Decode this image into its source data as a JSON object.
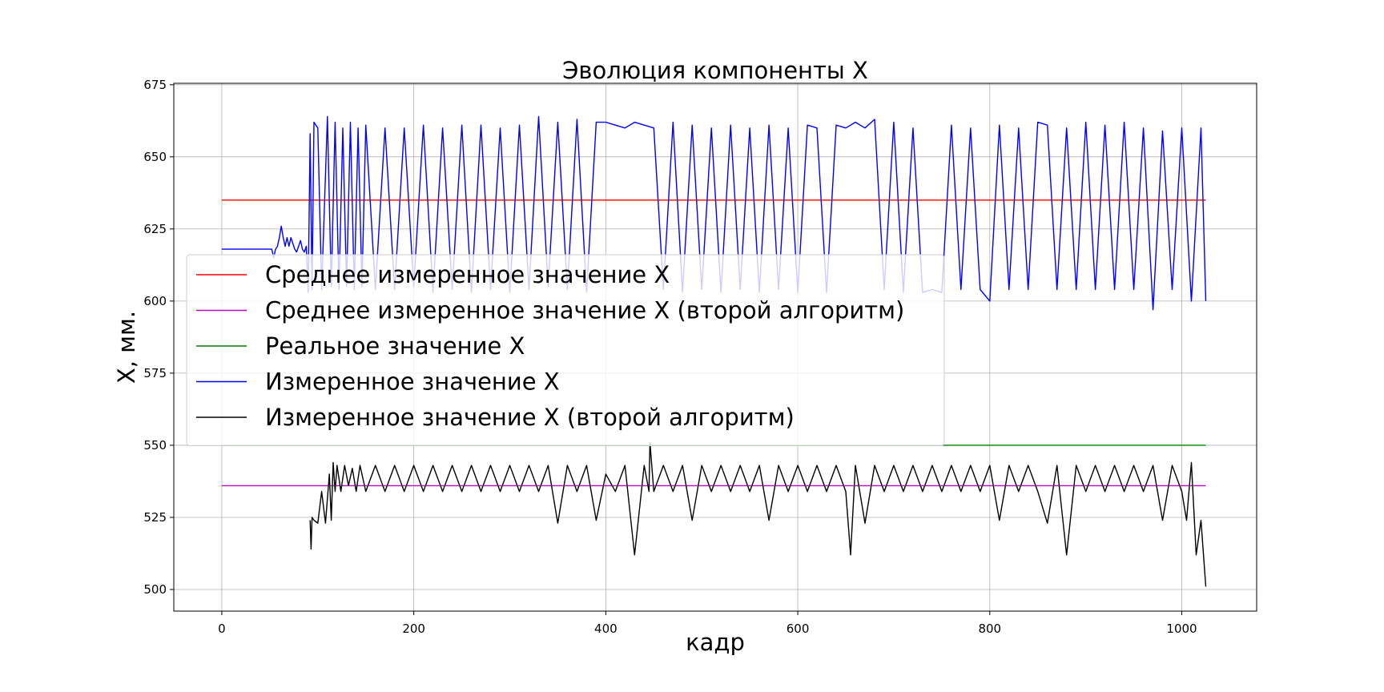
{
  "chart_data": {
    "type": "line",
    "title": "Эволюция компоненты X",
    "xlabel": "кадр",
    "ylabel": "X, мм.",
    "xlim": [
      -50,
      1078
    ],
    "ylim": [
      492.5,
      675.5
    ],
    "xticks": [
      0,
      200,
      400,
      600,
      800,
      1000
    ],
    "yticks": [
      500,
      525,
      550,
      575,
      600,
      625,
      650,
      675
    ],
    "grid": true,
    "legend_position": "center-left",
    "series": [
      {
        "name": "Среднее измеренное значение X",
        "color": "#ff0000",
        "x": [
          0,
          1025
        ],
        "y": [
          635,
          635
        ]
      },
      {
        "name": "Среднее измеренное значение X (второй алгоритм)",
        "color": "#bf00bf",
        "x": [
          0,
          1025
        ],
        "y": [
          536,
          536
        ]
      },
      {
        "name": "Реальное значение X",
        "color": "#008000",
        "x": [
          0,
          1025
        ],
        "y": [
          550,
          550
        ]
      },
      {
        "name": "Измеренное значение X",
        "color": "#0000ff",
        "x": [
          0,
          52,
          54,
          56,
          58,
          60,
          62,
          64,
          66,
          68,
          70,
          72,
          74,
          76,
          78,
          80,
          82,
          84,
          86,
          88,
          90,
          92,
          94,
          96,
          100,
          104,
          110,
          114,
          118,
          122,
          126,
          130,
          134,
          138,
          142,
          146,
          150,
          160,
          170,
          180,
          190,
          200,
          210,
          220,
          230,
          240,
          250,
          260,
          270,
          280,
          290,
          300,
          310,
          320,
          330,
          340,
          350,
          360,
          370,
          380,
          390,
          400,
          410,
          420,
          430,
          440,
          450,
          460,
          470,
          480,
          490,
          500,
          510,
          520,
          530,
          540,
          550,
          560,
          570,
          580,
          590,
          600,
          610,
          620,
          630,
          640,
          650,
          660,
          670,
          680,
          690,
          700,
          710,
          720,
          730,
          740,
          750,
          760,
          770,
          780,
          790,
          800,
          810,
          820,
          830,
          840,
          850,
          860,
          870,
          880,
          890,
          900,
          910,
          920,
          930,
          940,
          950,
          960,
          970,
          980,
          990,
          1000,
          1010,
          1020,
          1025
        ],
        "y": [
          618,
          618,
          615,
          618,
          619,
          622,
          626,
          622,
          619,
          622,
          619,
          622,
          620,
          618,
          617,
          619,
          621,
          618,
          617,
          619,
          603,
          658,
          604,
          662,
          660,
          604,
          664,
          605,
          662,
          604,
          660,
          605,
          662,
          604,
          660,
          605,
          661,
          604,
          660,
          604,
          660,
          605,
          661,
          603,
          660,
          604,
          661,
          603,
          661,
          604,
          660,
          603,
          661,
          604,
          664,
          605,
          662,
          604,
          663,
          603,
          662,
          662,
          661,
          660,
          662,
          661,
          660,
          604,
          662,
          603,
          661,
          604,
          660,
          603,
          661,
          604,
          660,
          603,
          661,
          604,
          660,
          603,
          661,
          660,
          603,
          661,
          660,
          662,
          660,
          663,
          604,
          662,
          603,
          660,
          603,
          604,
          603,
          661,
          604,
          660,
          604,
          600,
          661,
          604,
          660,
          604,
          662,
          661,
          604,
          660,
          604,
          662,
          604,
          661,
          604,
          662,
          604,
          660,
          597,
          659,
          604,
          660,
          600,
          660,
          600
        ]
      },
      {
        "name": "Измеренное значение X (второй алгоритм)",
        "color": "#000000",
        "x": [
          92,
          93,
          94,
          96,
          100,
          104,
          108,
          112,
          114,
          116,
          118,
          120,
          124,
          128,
          132,
          136,
          140,
          144,
          150,
          160,
          170,
          180,
          190,
          200,
          210,
          220,
          230,
          240,
          250,
          260,
          270,
          280,
          290,
          300,
          310,
          320,
          330,
          340,
          350,
          360,
          370,
          380,
          390,
          400,
          410,
          420,
          430,
          440,
          445,
          446,
          450,
          460,
          470,
          480,
          490,
          500,
          510,
          520,
          530,
          540,
          550,
          560,
          570,
          580,
          590,
          600,
          610,
          620,
          630,
          640,
          650,
          655,
          660,
          670,
          680,
          690,
          700,
          710,
          720,
          730,
          740,
          750,
          760,
          770,
          780,
          790,
          800,
          810,
          820,
          830,
          840,
          850,
          860,
          870,
          880,
          890,
          900,
          910,
          920,
          930,
          940,
          950,
          960,
          970,
          980,
          990,
          1000,
          1005,
          1010,
          1015,
          1020,
          1025
        ],
        "y": [
          524,
          514,
          525,
          524,
          523,
          534,
          523,
          540,
          524,
          544,
          534,
          543,
          534,
          543,
          536,
          542,
          534,
          543,
          534,
          543,
          534,
          543,
          534,
          543,
          534,
          543,
          534,
          543,
          534,
          543,
          534,
          543,
          534,
          543,
          534,
          543,
          534,
          543,
          523,
          543,
          534,
          543,
          524,
          540,
          534,
          543,
          512,
          543,
          534,
          551,
          534,
          543,
          534,
          543,
          524,
          543,
          534,
          543,
          534,
          543,
          534,
          543,
          524,
          543,
          534,
          543,
          534,
          543,
          534,
          543,
          534,
          512,
          543,
          523,
          543,
          534,
          543,
          534,
          543,
          534,
          543,
          534,
          543,
          534,
          543,
          534,
          543,
          524,
          543,
          534,
          543,
          534,
          523,
          543,
          512,
          543,
          534,
          543,
          534,
          543,
          534,
          543,
          534,
          543,
          524,
          543,
          534,
          524,
          544,
          512,
          524,
          501
        ]
      }
    ]
  }
}
